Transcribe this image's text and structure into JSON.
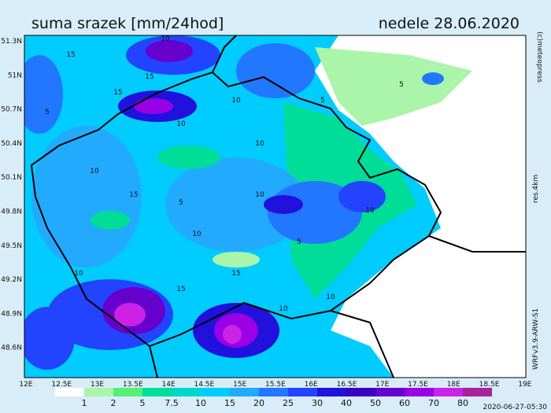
{
  "header": {
    "title": "suma srazek [mm/24hod]",
    "date": "nedele 28.06.2020"
  },
  "map": {
    "lat_labels": [
      "51.3N",
      "51N",
      "50.7N",
      "50.4N",
      "50.1N",
      "49.8N",
      "49.5N",
      "49.2N",
      "48.9N",
      "48.6N"
    ],
    "lon_labels": [
      "12E",
      "12.5E",
      "13E",
      "13.5E",
      "14E",
      "14.5E",
      "15E",
      "15.5E",
      "16E",
      "16.5E",
      "17E",
      "17.5E",
      "18E",
      "18.5E",
      "19E"
    ],
    "contour_labels": [
      "15",
      "10",
      "15",
      "10",
      "5",
      "10",
      "15",
      "10",
      "5",
      "10",
      "5",
      "10",
      "15",
      "10",
      "10",
      "5",
      "10",
      "15",
      "10",
      "5",
      "15",
      "10"
    ]
  },
  "colorbar": {
    "labels": [
      1,
      2,
      5,
      7.5,
      10,
      15,
      20,
      25,
      30,
      40,
      50,
      60,
      70,
      80
    ],
    "colors": [
      "#ffffff",
      "#aaf5aa",
      "#55ee77",
      "#00dd99",
      "#00d6cc",
      "#00ccff",
      "#22aaff",
      "#2277ff",
      "#2244ff",
      "#2211dd",
      "#3a00c4",
      "#6600cc",
      "#9a00e6",
      "#cc22e6",
      "#aa2299"
    ]
  },
  "side": {
    "copyright": "(c)meteopress",
    "resolution": "res.4km",
    "model": "WRFv3.9-ARW-S1"
  },
  "footer": {
    "timestamp": "2020-06-27-05:30"
  }
}
